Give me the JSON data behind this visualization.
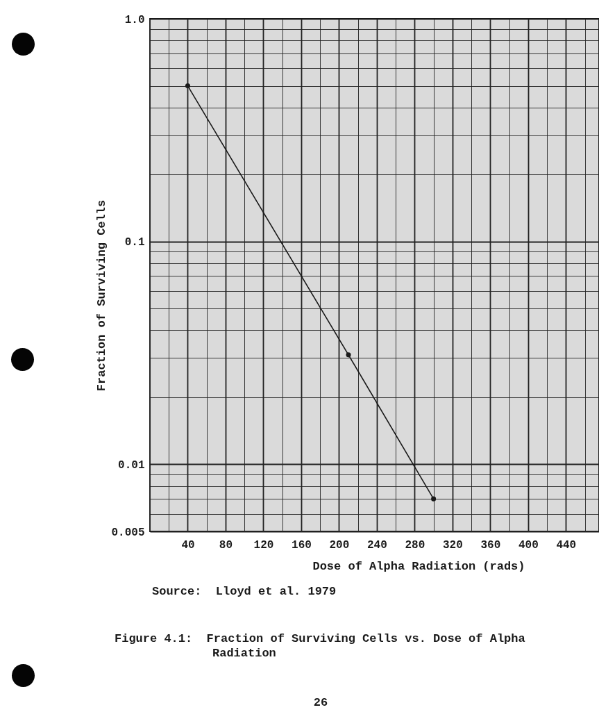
{
  "chart_data": {
    "type": "line",
    "title": "Figure 4.1:  Fraction of Surviving Cells vs. Dose of Alpha Radiation",
    "xlabel": "Dose of Alpha Radiation (rads)",
    "ylabel": "Fraction of Surviving Cells",
    "annotations": [
      "Source:  Lloyd et al. 1979",
      "26"
    ],
    "x": [
      40,
      210,
      300
    ],
    "series": [
      {
        "color": "#1a1a1a",
        "values": [
          0.5,
          0.031,
          0.007
        ]
      }
    ],
    "xlim": [
      0,
      475
    ],
    "ylim": [
      0.005,
      1
    ],
    "xticks": [
      {
        "value": 20,
        "label": null
      },
      40,
      {
        "value": 60,
        "label": null
      },
      80,
      {
        "value": 100,
        "label": null
      },
      120,
      {
        "value": 140,
        "label": null
      },
      160,
      {
        "value": 180,
        "label": null
      },
      200,
      {
        "value": 220,
        "label": null
      },
      240,
      {
        "value": 260,
        "label": null
      },
      280,
      {
        "value": 300,
        "label": null
      },
      320,
      {
        "value": 340,
        "label": null
      },
      360,
      {
        "value": 380,
        "label": null
      },
      400,
      {
        "value": 420,
        "label": null
      },
      440,
      {
        "value": 460,
        "label": null
      }
    ],
    "yticks": [
      0.005,
      {
        "value": 0.006,
        "label": null
      },
      {
        "value": 0.007,
        "label": null
      },
      {
        "value": 0.008,
        "label": null
      },
      {
        "value": 0.009,
        "label": null
      },
      0.01,
      {
        "value": 0.02,
        "label": null
      },
      {
        "value": 0.03,
        "label": null
      },
      {
        "value": 0.04,
        "label": null
      },
      {
        "value": 0.05,
        "label": null
      },
      {
        "value": 0.06,
        "label": null
      },
      {
        "value": 0.07,
        "label": null
      },
      {
        "value": 0.08,
        "label": null
      },
      {
        "value": 0.09,
        "label": null
      },
      0.1,
      {
        "value": 0.2,
        "label": null
      },
      {
        "value": 0.3,
        "label": null
      },
      {
        "value": 0.4,
        "label": null
      },
      {
        "value": 0.5,
        "label": null
      },
      {
        "value": 0.6,
        "label": null
      },
      {
        "value": 0.7,
        "label": null
      },
      {
        "value": 0.8,
        "label": null
      },
      {
        "value": 0.9,
        "label": null
      },
      {
        "value": 1,
        "label": "1.0"
      }
    ],
    "log": "y",
    "grid": true,
    "marker": "circle",
    "line_style": "solid",
    "legend": false
  }
}
